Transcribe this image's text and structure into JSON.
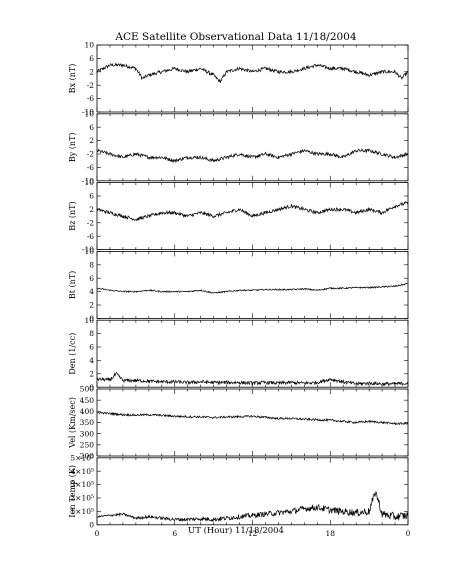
{
  "chart_data": {
    "type": "line",
    "title": "ACE Satellite Observational Data   11/18/2004",
    "xlabel": "UT (Hour)  11/18/2004",
    "x_range": [
      0,
      24
    ],
    "x_ticks": [
      "0",
      "6",
      "12",
      "18",
      "0"
    ],
    "x_tick_values": [
      0,
      6,
      12,
      18,
      24
    ],
    "grid": false,
    "legend": "none",
    "panels": [
      {
        "id": "bx",
        "ylabel": "Bx (nT)",
        "ylim": [
          -10,
          10
        ],
        "yticks": [
          {
            "v": 10,
            "label": "10"
          },
          {
            "v": 6,
            "label": "6"
          },
          {
            "v": 2,
            "label": "2"
          },
          {
            "v": -2,
            "label": "-2"
          },
          {
            "v": -6,
            "label": "-6"
          },
          {
            "v": -10,
            "label": "-10"
          }
        ],
        "x": [
          0,
          1,
          2,
          3,
          3.5,
          4,
          5,
          6,
          7,
          8,
          9,
          9.5,
          10,
          11,
          12,
          13,
          14,
          15,
          16,
          17,
          18,
          19,
          20,
          21,
          22,
          23,
          23.5,
          24
        ],
        "y": [
          2,
          4,
          4,
          3,
          0,
          1,
          2,
          3,
          2,
          3,
          1,
          -1,
          2,
          3,
          2,
          3,
          2,
          2,
          3,
          4,
          3,
          3,
          2,
          1,
          2,
          2,
          0,
          2
        ]
      },
      {
        "id": "by",
        "ylabel": "By (nT)",
        "ylim": [
          -10,
          10
        ],
        "yticks": [
          {
            "v": 10,
            "label": "10"
          },
          {
            "v": 6,
            "label": "6"
          },
          {
            "v": 2,
            "label": "2"
          },
          {
            "v": -2,
            "label": "-2"
          },
          {
            "v": -6,
            "label": "-6"
          },
          {
            "v": -10,
            "label": "-10"
          }
        ],
        "x": [
          0,
          1,
          2,
          3,
          4,
          5,
          6,
          7,
          8,
          9,
          10,
          11,
          12,
          13,
          14,
          15,
          16,
          17,
          18,
          19,
          20,
          21,
          22,
          23,
          24
        ],
        "y": [
          -1,
          -2,
          -3,
          -2,
          -3,
          -3,
          -4,
          -3,
          -3,
          -4,
          -3,
          -2,
          -3,
          -2,
          -3,
          -2,
          -1,
          -2,
          -2,
          -3,
          -1,
          -1,
          -2,
          -3,
          -2
        ]
      },
      {
        "id": "bz",
        "ylabel": "Bz (nT)",
        "ylim": [
          -10,
          10
        ],
        "yticks": [
          {
            "v": 10,
            "label": "10"
          },
          {
            "v": 6,
            "label": "6"
          },
          {
            "v": 2,
            "label": "2"
          },
          {
            "v": -2,
            "label": "-2"
          },
          {
            "v": -6,
            "label": "-6"
          },
          {
            "v": -10,
            "label": "-10"
          }
        ],
        "x": [
          0,
          1,
          2,
          3,
          4,
          5,
          6,
          7,
          8,
          9,
          10,
          11,
          12,
          13,
          14,
          15,
          16,
          17,
          18,
          19,
          20,
          21,
          22,
          23,
          24
        ],
        "y": [
          2,
          1,
          0,
          -1,
          0,
          1,
          1,
          0,
          1,
          0,
          1,
          2,
          0,
          1,
          2,
          3,
          2,
          1,
          2,
          2,
          1,
          2,
          1,
          3,
          4
        ]
      },
      {
        "id": "bt",
        "ylabel": "Bt (nT)",
        "ylim": [
          0,
          10
        ],
        "yticks": [
          {
            "v": 10,
            "label": "10"
          },
          {
            "v": 8,
            "label": "8"
          },
          {
            "v": 6,
            "label": "6"
          },
          {
            "v": 4,
            "label": "4"
          },
          {
            "v": 2,
            "label": "2"
          },
          {
            "v": 0,
            "label": "0"
          }
        ],
        "x": [
          0,
          1,
          2,
          3,
          4,
          5,
          6,
          7,
          8,
          9,
          10,
          11,
          12,
          13,
          14,
          15,
          16,
          17,
          18,
          19,
          20,
          21,
          22,
          23,
          24
        ],
        "y": [
          4.5,
          4.2,
          4.0,
          4.0,
          4.2,
          4.0,
          4.0,
          4.0,
          4.2,
          3.8,
          4.0,
          4.2,
          4.2,
          4.3,
          4.3,
          4.3,
          4.4,
          4.2,
          4.5,
          4.5,
          4.6,
          4.6,
          4.7,
          4.8,
          5.2
        ]
      },
      {
        "id": "den",
        "ylabel": "Den (1/cc)",
        "ylim": [
          0,
          10
        ],
        "yticks": [
          {
            "v": 10,
            "label": "10"
          },
          {
            "v": 8,
            "label": "8"
          },
          {
            "v": 6,
            "label": "6"
          },
          {
            "v": 4,
            "label": "4"
          },
          {
            "v": 2,
            "label": "2"
          },
          {
            "v": 0,
            "label": "0"
          }
        ],
        "x": [
          0,
          1,
          1.5,
          2,
          3,
          4,
          5,
          6,
          7,
          8,
          9,
          10,
          11,
          12,
          13,
          14,
          15,
          16,
          17,
          18,
          19,
          20,
          21,
          22,
          23,
          24
        ],
        "y": [
          1.2,
          1.1,
          2.0,
          1.0,
          1.0,
          0.9,
          0.8,
          0.8,
          0.7,
          0.8,
          0.7,
          0.7,
          0.7,
          0.6,
          0.7,
          0.6,
          0.7,
          0.6,
          0.7,
          1.2,
          0.8,
          0.5,
          0.6,
          0.5,
          0.5,
          0.6
        ]
      },
      {
        "id": "vel",
        "ylabel": "Vel (Km/sec)",
        "ylim": [
          200,
          500
        ],
        "yticks": [
          {
            "v": 500,
            "label": "500"
          },
          {
            "v": 450,
            "label": "450"
          },
          {
            "v": 400,
            "label": "400"
          },
          {
            "v": 350,
            "label": "350"
          },
          {
            "v": 300,
            "label": "300"
          },
          {
            "v": 250,
            "label": "250"
          },
          {
            "v": 200,
            "label": "200"
          }
        ],
        "x": [
          0,
          1,
          2,
          3,
          4,
          5,
          6,
          7,
          8,
          9,
          10,
          11,
          12,
          13,
          14,
          15,
          16,
          17,
          18,
          19,
          20,
          21,
          22,
          23,
          24
        ],
        "y": [
          395,
          390,
          385,
          383,
          385,
          382,
          378,
          376,
          375,
          372,
          375,
          376,
          378,
          373,
          368,
          368,
          365,
          362,
          360,
          355,
          350,
          355,
          350,
          345,
          345
        ]
      },
      {
        "id": "temp",
        "ylabel": "Ion Temp (K)",
        "ylim": [
          0,
          500000
        ],
        "yticks": [
          {
            "v": 500000,
            "label": "5×10⁵"
          },
          {
            "v": 400000,
            "label": "4×10⁵"
          },
          {
            "v": 300000,
            "label": "3×10⁵"
          },
          {
            "v": 200000,
            "label": "2×10⁵"
          },
          {
            "v": 100000,
            "label": "1×10⁵"
          },
          {
            "v": 0,
            "label": "0"
          }
        ],
        "x": [
          0,
          1,
          2,
          3,
          4,
          5,
          6,
          7,
          8,
          9,
          10,
          11,
          12,
          13,
          14,
          15,
          16,
          17,
          18,
          19,
          20,
          21,
          21.5,
          22,
          23,
          24
        ],
        "y": [
          60000,
          70000,
          80000,
          50000,
          60000,
          50000,
          40000,
          40000,
          45000,
          40000,
          50000,
          60000,
          70000,
          80000,
          90000,
          100000,
          120000,
          130000,
          110000,
          100000,
          90000,
          100000,
          250000,
          80000,
          60000,
          70000
        ]
      }
    ]
  }
}
